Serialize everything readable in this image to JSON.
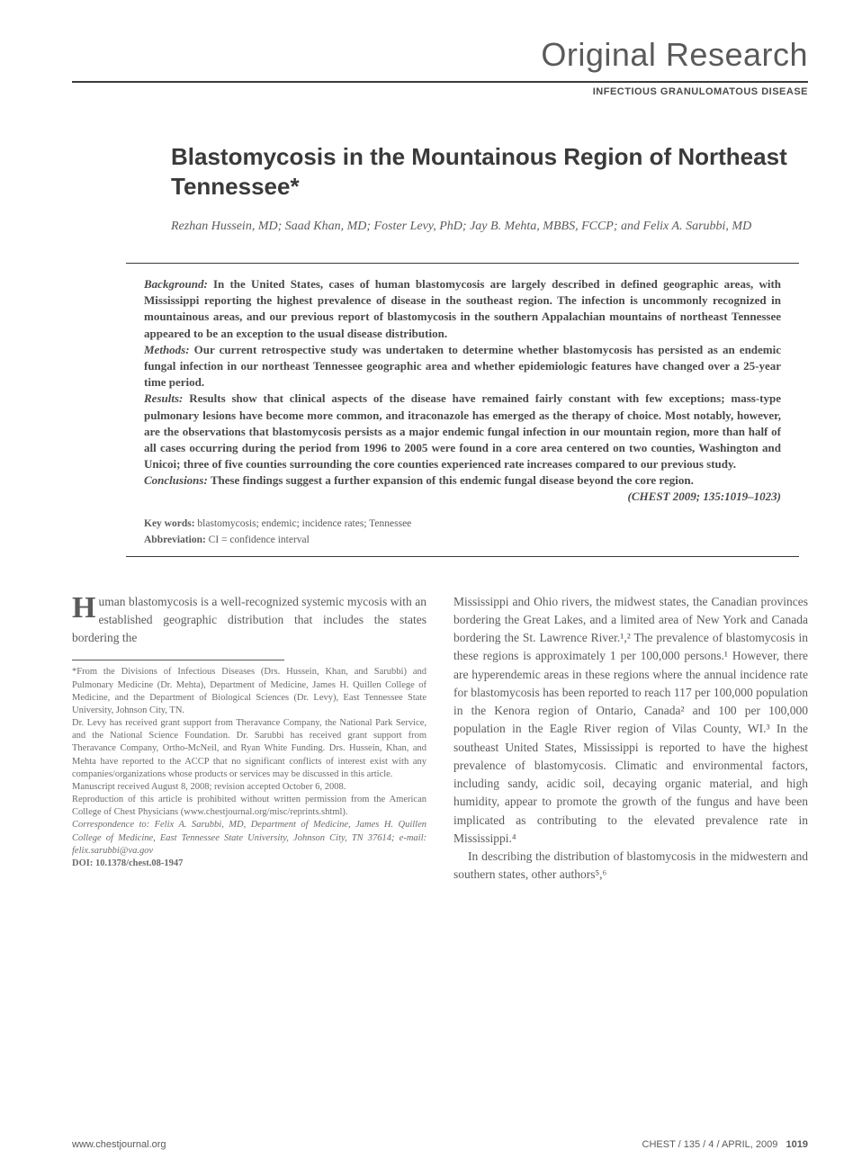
{
  "header": {
    "category": "Original Research",
    "subcategory": "INFECTIOUS GRANULOMATOUS DISEASE"
  },
  "article": {
    "title": "Blastomycosis in the Mountainous Region of Northeast Tennessee*",
    "authors": "Rezhan Hussein, MD; Saad Khan, MD; Foster Levy, PhD; Jay B. Mehta, MBBS, FCCP; and Felix A. Sarubbi, MD"
  },
  "abstract": {
    "background_label": "Background:",
    "background": "In the United States, cases of human blastomycosis are largely described in defined geographic areas, with Mississippi reporting the highest prevalence of disease in the southeast region. The infection is uncommonly recognized in mountainous areas, and our previous report of blastomycosis in the southern Appalachian mountains of northeast Tennessee appeared to be an exception to the usual disease distribution.",
    "methods_label": "Methods:",
    "methods": "Our current retrospective study was undertaken to determine whether blastomycosis has persisted as an endemic fungal infection in our northeast Tennessee geographic area and whether epidemiologic features have changed over a 25-year time period.",
    "results_label": "Results:",
    "results": "Results show that clinical aspects of the disease have remained fairly constant with few exceptions; mass-type pulmonary lesions have become more common, and itraconazole has emerged as the therapy of choice. Most notably, however, are the observations that blastomycosis persists as a major endemic fungal infection in our mountain region, more than half of all cases occurring during the period from 1996 to 2005 were found in a core area centered on two counties, Washington and Unicoi; three of five counties surrounding the core counties experienced rate increases compared to our previous study.",
    "conclusions_label": "Conclusions:",
    "conclusions": "These findings suggest a further expansion of this endemic fungal disease beyond the core region.",
    "citation": "(CHEST 2009; 135:1019–1023)",
    "keywords_label": "Key words:",
    "keywords": "blastomycosis; endemic; incidence rates; Tennessee",
    "abbrev_label": "Abbreviation:",
    "abbrev": "CI = confidence interval"
  },
  "body": {
    "dropcap": "H",
    "intro": "uman blastomycosis is a well-recognized systemic mycosis with an established geographic distribution that includes the states bordering the",
    "col2_p1": "Mississippi and Ohio rivers, the midwest states, the Canadian provinces bordering the Great Lakes, and a limited area of New York and Canada bordering the St. Lawrence River.¹,² The prevalence of blastomycosis in these regions is approximately 1 per 100,000 persons.¹ However, there are hyperendemic areas in these regions where the annual incidence rate for blastomycosis has been reported to reach 117 per 100,000 population in the Kenora region of Ontario, Canada² and 100 per 100,000 population in the Eagle River region of Vilas County, WI.³ In the southeast United States, Mississippi is reported to have the highest prevalence of blastomycosis. Climatic and environmental factors, including sandy, acidic soil, decaying organic material, and high humidity, appear to promote the growth of the fungus and have been implicated as contributing to the elevated prevalence rate in Mississippi.⁴",
    "col2_p2": "In describing the distribution of blastomycosis in the midwestern and southern states, other authors⁵,⁶"
  },
  "footnote": {
    "affiliation": "*From the Divisions of Infectious Diseases (Drs. Hussein, Khan, and Sarubbi) and Pulmonary Medicine (Dr. Mehta), Department of Medicine, James H. Quillen College of Medicine, and the Department of Biological Sciences (Dr. Levy), East Tennessee State University, Johnson City, TN.",
    "funding": "Dr. Levy has received grant support from Theravance Company, the National Park Service, and the National Science Foundation. Dr. Sarubbi has received grant support from Theravance Company, Ortho-McNeil, and Ryan White Funding. Drs. Hussein, Khan, and Mehta have reported to the ACCP that no significant conflicts of interest exist with any companies/organizations whose products or services may be discussed in this article.",
    "dates": "Manuscript received August 8, 2008; revision accepted October 6, 2008.",
    "reproduction": "Reproduction of this article is prohibited without written permission from the American College of Chest Physicians (www.chestjournal.org/misc/reprints.shtml).",
    "correspondence": "Correspondence to: Felix A. Sarubbi, MD, Department of Medicine, James H. Quillen College of Medicine, East Tennessee State University, Johnson City, TN 37614; e-mail: felix.sarubbi@va.gov",
    "doi": "DOI: 10.1378/chest.08-1947"
  },
  "footer": {
    "url": "www.chestjournal.org",
    "issue": "CHEST / 135 / 4 / APRIL, 2009",
    "page": "1019"
  }
}
